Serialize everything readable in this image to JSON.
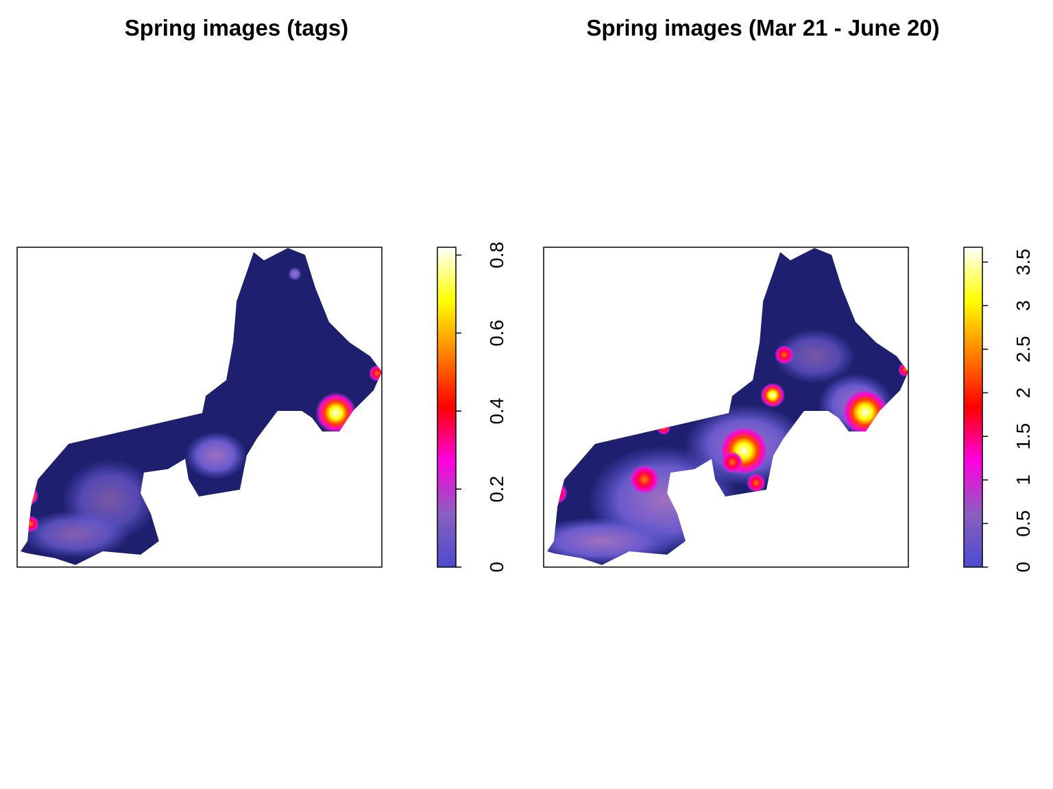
{
  "chart_data": [
    {
      "type": "heatmap",
      "title": "Spring images (tags)",
      "zlim": [
        0,
        0.82
      ],
      "zticks": [
        0,
        0.2,
        0.4,
        0.6,
        0.8
      ],
      "colors": [
        "#4b4bcf",
        "#8a5fbf",
        "#ff00e0",
        "#ff0000",
        "#ff8000",
        "#ffff00",
        "#ffffff"
      ]
    },
    {
      "type": "heatmap",
      "title": "Spring images (Mar 21 - June 20)",
      "zlim": [
        0,
        3.67
      ],
      "zticks": [
        0,
        0.5,
        1,
        1.5,
        2,
        2.5,
        3,
        3.5
      ],
      "colors": [
        "#4b4bcf",
        "#8a5fbf",
        "#ff00e0",
        "#ff0000",
        "#ff8000",
        "#ffff00",
        "#ffffff"
      ]
    }
  ]
}
